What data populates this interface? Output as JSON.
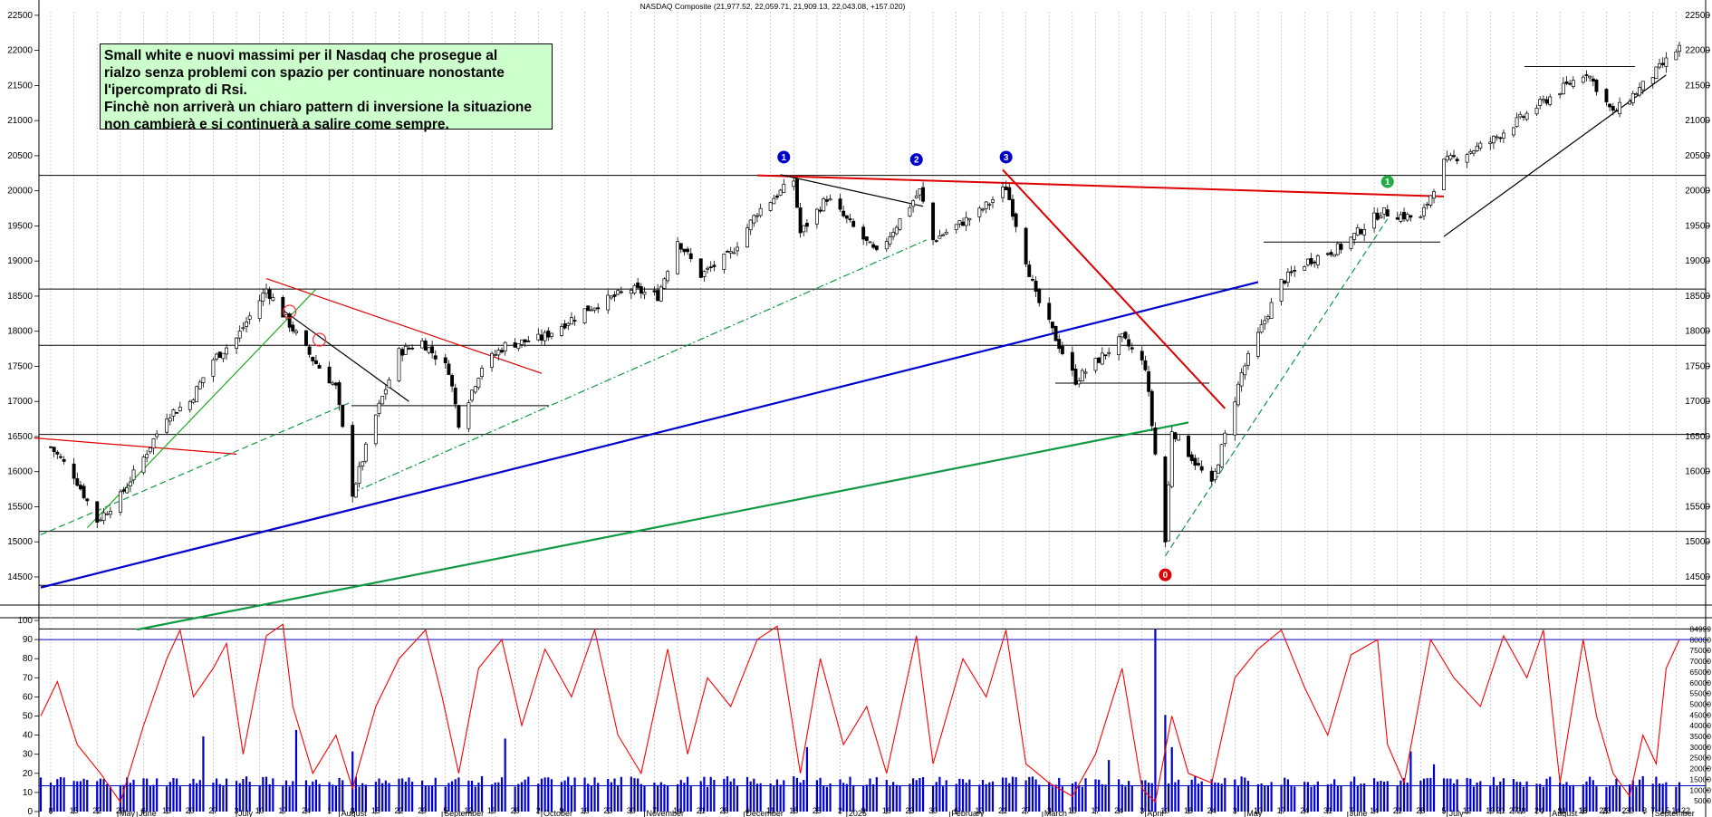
{
  "header": {
    "title": "NASDAQ Composite (21,977.52, 22,059.71, 21,909.13, 22,043.08, +157.020)"
  },
  "annotation": {
    "lines": [
      "Small white e nuovi massimi per il Nasdaq che prosegue al",
      "rialzo senza problemi con spazio per continuare nonostante",
      "l'ipercomprato di Rsi.",
      "Finchè non arriverà un chiaro pattern di inversione la situazione",
      "non cambierà e si continuerà a salire come sempre."
    ]
  },
  "markers": [
    {
      "label": "1",
      "color": "#0000cc",
      "date": "2024-12-13",
      "y": 20480
    },
    {
      "label": "2",
      "color": "#0000cc",
      "date": "2025-01-22",
      "y": 20445
    },
    {
      "label": "3",
      "color": "#0000cc",
      "date": "2025-02-18",
      "y": 20480
    },
    {
      "label": "0",
      "color": "#dd0000",
      "date": "2025-04-07",
      "y": 14530
    },
    {
      "label": "1",
      "color": "#22aa44",
      "date": "2025-06-13",
      "y": 20130
    }
  ],
  "chart_data": [
    {
      "type": "candlestick",
      "title": "NASDAQ Composite (21,977.52, 22,059.71, 21,909.13, 22,043.08, +157.020)",
      "x_axis": {
        "day_ticks": [
          "8",
          "15",
          "22",
          "29",
          "6",
          "13",
          "20",
          "27",
          "3",
          "10",
          "17",
          "24",
          "1",
          "8",
          "15",
          "22",
          "29",
          "5",
          "12",
          "19",
          "26",
          "2",
          "9",
          "16",
          "23",
          "30",
          "7",
          "14",
          "21",
          "28",
          "4",
          "11",
          "18",
          "25",
          "2",
          "9",
          "16",
          "23",
          "30",
          "6",
          "13",
          "21",
          "27",
          "3",
          "10",
          "17",
          "24",
          "3",
          "10",
          "18",
          "24",
          "3",
          "10",
          "17",
          "24",
          "31",
          "7",
          "14",
          "21",
          "28",
          "5",
          "12",
          "19",
          "27",
          "2",
          "9",
          "16",
          "23",
          "30",
          "7",
          "14",
          "21",
          "28",
          "4",
          "11",
          "18",
          "25",
          "2",
          "8",
          "15",
          "22"
        ],
        "month_labels": [
          "May",
          "June",
          "July",
          "August",
          "September",
          "October",
          "November",
          "December",
          "2025",
          "February",
          "March",
          "April",
          "May",
          "June",
          "July",
          "August",
          "September"
        ]
      },
      "y_axis": {
        "ticks": [
          "22500",
          "22000",
          "21500",
          "21000",
          "20500",
          "20000",
          "19500",
          "19000",
          "18500",
          "18000",
          "17500",
          "17000",
          "16500",
          "16000",
          "15500",
          "15000",
          "14500"
        ],
        "range": [
          14100,
          22550
        ]
      },
      "price_path": [
        {
          "date": "2024-05-06",
          "close": 16350
        },
        {
          "date": "2024-05-13",
          "close": 15950
        },
        {
          "date": "2024-05-20",
          "close": 15300
        },
        {
          "date": "2024-05-27",
          "close": 15650
        },
        {
          "date": "2024-06-03",
          "close": 16200
        },
        {
          "date": "2024-06-10",
          "close": 16800
        },
        {
          "date": "2024-06-17",
          "close": 17000
        },
        {
          "date": "2024-06-24",
          "close": 17600
        },
        {
          "date": "2024-07-01",
          "close": 17900
        },
        {
          "date": "2024-07-10",
          "close": 18600
        },
        {
          "date": "2024-07-17",
          "close": 18100
        },
        {
          "date": "2024-07-24",
          "close": 17600
        },
        {
          "date": "2024-07-31",
          "close": 17200
        },
        {
          "date": "2024-08-05",
          "close": 15700
        },
        {
          "date": "2024-08-12",
          "close": 16800
        },
        {
          "date": "2024-08-19",
          "close": 17700
        },
        {
          "date": "2024-08-26",
          "close": 17850
        },
        {
          "date": "2024-09-03",
          "close": 17450
        },
        {
          "date": "2024-09-06",
          "close": 16700
        },
        {
          "date": "2024-09-13",
          "close": 17500
        },
        {
          "date": "2024-09-20",
          "close": 17800
        },
        {
          "date": "2024-10-01",
          "close": 17900
        },
        {
          "date": "2024-10-14",
          "close": 18300
        },
        {
          "date": "2024-10-28",
          "close": 18600
        },
        {
          "date": "2024-11-05",
          "close": 18500
        },
        {
          "date": "2024-11-11",
          "close": 19300
        },
        {
          "date": "2024-11-18",
          "close": 18800
        },
        {
          "date": "2024-11-27",
          "close": 19100
        },
        {
          "date": "2024-12-05",
          "close": 19700
        },
        {
          "date": "2024-12-16",
          "close": 20150
        },
        {
          "date": "2024-12-18",
          "close": 19400
        },
        {
          "date": "2024-12-26",
          "close": 19900
        },
        {
          "date": "2025-01-10",
          "close": 19100
        },
        {
          "date": "2025-01-23",
          "close": 20000
        },
        {
          "date": "2025-01-27",
          "close": 19300
        },
        {
          "date": "2025-02-10",
          "close": 19700
        },
        {
          "date": "2025-02-18",
          "close": 20050
        },
        {
          "date": "2025-02-27",
          "close": 18500
        },
        {
          "date": "2025-03-11",
          "close": 17300
        },
        {
          "date": "2025-03-25",
          "close": 17900
        },
        {
          "date": "2025-04-01",
          "close": 17500
        },
        {
          "date": "2025-04-07",
          "close": 15000
        },
        {
          "date": "2025-04-09",
          "close": 16600
        },
        {
          "date": "2025-04-21",
          "close": 15800
        },
        {
          "date": "2025-04-30",
          "close": 17400
        },
        {
          "date": "2025-05-12",
          "close": 18700
        },
        {
          "date": "2025-05-20",
          "close": 19000
        },
        {
          "date": "2025-05-30",
          "close": 19200
        },
        {
          "date": "2025-06-11",
          "close": 19700
        },
        {
          "date": "2025-06-23",
          "close": 19600
        },
        {
          "date": "2025-06-30",
          "close": 20400
        },
        {
          "date": "2025-07-14",
          "close": 20700
        },
        {
          "date": "2025-07-28",
          "close": 21200
        },
        {
          "date": "2025-08-12",
          "close": 21700
        },
        {
          "date": "2025-08-20",
          "close": 21100
        },
        {
          "date": "2025-08-29",
          "close": 21500
        },
        {
          "date": "2025-09-09",
          "close": 22043
        }
      ],
      "horizontal_lines": [
        20220,
        18600,
        17800,
        16530,
        15150,
        14380,
        13760,
        19270,
        21770,
        16940,
        17260
      ],
      "trendlines": [
        {
          "color": "#0000cc",
          "from": {
            "date": "2024-05-03",
            "y": 14350
          },
          "to": {
            "date": "2025-05-05",
            "y": 18700
          }
        },
        {
          "color": "#119944",
          "from": {
            "date": "2024-06-01",
            "y": 13750
          },
          "to": {
            "date": "2025-04-14",
            "y": 16700
          }
        },
        {
          "color": "#dd0000",
          "from": {
            "date": "2024-12-05",
            "y": 20220
          },
          "to": {
            "date": "2025-06-30",
            "y": 19920
          }
        },
        {
          "color": "#dd0000",
          "from": {
            "date": "2025-02-17",
            "y": 20300
          },
          "to": {
            "date": "2025-04-25",
            "y": 16900
          }
        },
        {
          "color": "#dd0000",
          "from": {
            "date": "2024-07-10",
            "y": 18750
          },
          "to": {
            "date": "2024-10-01",
            "y": 17400
          }
        },
        {
          "color": "#dd0000",
          "from": {
            "date": "2024-05-01",
            "y": 16480
          },
          "to": {
            "date": "2024-07-01",
            "y": 16250
          }
        },
        {
          "color": "#000000",
          "from": {
            "date": "2024-12-12",
            "y": 20230
          },
          "to": {
            "date": "2025-01-24",
            "y": 19780
          }
        },
        {
          "color": "#000000",
          "from": {
            "date": "2024-07-15",
            "y": 18300
          },
          "to": {
            "date": "2024-08-22",
            "y": 17000
          }
        },
        {
          "color": "#000000",
          "from": {
            "date": "2025-06-30",
            "y": 19350
          },
          "to": {
            "date": "2025-09-05",
            "y": 21650
          }
        },
        {
          "color": "#22aa22",
          "from": {
            "date": "2024-05-17",
            "y": 15200
          },
          "to": {
            "date": "2024-07-25",
            "y": 18600
          }
        },
        {
          "color": "#119944",
          "dash": "dashed",
          "from": {
            "date": "2024-05-03",
            "y": 15100
          },
          "to": {
            "date": "2024-08-05",
            "y": 17000
          }
        },
        {
          "color": "#119944",
          "dash": "dashdot",
          "from": {
            "date": "2024-08-05",
            "y": 15700
          },
          "to": {
            "date": "2025-01-25",
            "y": 19300
          }
        },
        {
          "color": "#119944",
          "dash": "dashed",
          "from": {
            "date": "2025-04-07",
            "y": 14800
          },
          "to": {
            "date": "2025-06-13",
            "y": 19600
          }
        }
      ]
    },
    {
      "type": "line",
      "series_color": "#ff0000",
      "y_axis_left": {
        "ticks": [
          "100",
          "90",
          "80",
          "70",
          "60",
          "50",
          "40",
          "30",
          "20",
          "10",
          "0"
        ],
        "range": [
          0,
          100
        ]
      },
      "reference_line": 90,
      "rsi_path": [
        {
          "date": "2024-05-03",
          "v": 50
        },
        {
          "date": "2024-05-08",
          "v": 68
        },
        {
          "date": "2024-05-14",
          "v": 35
        },
        {
          "date": "2024-05-21",
          "v": 20
        },
        {
          "date": "2024-05-27",
          "v": 5
        },
        {
          "date": "2024-06-03",
          "v": 45
        },
        {
          "date": "2024-06-10",
          "v": 80
        },
        {
          "date": "2024-06-14",
          "v": 95
        },
        {
          "date": "2024-06-18",
          "v": 60
        },
        {
          "date": "2024-06-24",
          "v": 75
        },
        {
          "date": "2024-06-28",
          "v": 88
        },
        {
          "date": "2024-07-03",
          "v": 30
        },
        {
          "date": "2024-07-10",
          "v": 92
        },
        {
          "date": "2024-07-15",
          "v": 98
        },
        {
          "date": "2024-07-18",
          "v": 55
        },
        {
          "date": "2024-07-24",
          "v": 20
        },
        {
          "date": "2024-07-31",
          "v": 40
        },
        {
          "date": "2024-08-05",
          "v": 12
        },
        {
          "date": "2024-08-12",
          "v": 55
        },
        {
          "date": "2024-08-19",
          "v": 80
        },
        {
          "date": "2024-08-27",
          "v": 95
        },
        {
          "date": "2024-09-01",
          "v": 60
        },
        {
          "date": "2024-09-06",
          "v": 20
        },
        {
          "date": "2024-09-12",
          "v": 75
        },
        {
          "date": "2024-09-19",
          "v": 90
        },
        {
          "date": "2024-09-25",
          "v": 45
        },
        {
          "date": "2024-10-02",
          "v": 85
        },
        {
          "date": "2024-10-10",
          "v": 60
        },
        {
          "date": "2024-10-17",
          "v": 95
        },
        {
          "date": "2024-10-24",
          "v": 40
        },
        {
          "date": "2024-10-31",
          "v": 20
        },
        {
          "date": "2024-11-08",
          "v": 85
        },
        {
          "date": "2024-11-14",
          "v": 30
        },
        {
          "date": "2024-11-20",
          "v": 70
        },
        {
          "date": "2024-11-27",
          "v": 55
        },
        {
          "date": "2024-12-05",
          "v": 90
        },
        {
          "date": "2024-12-11",
          "v": 97
        },
        {
          "date": "2024-12-18",
          "v": 20
        },
        {
          "date": "2024-12-24",
          "v": 80
        },
        {
          "date": "2024-12-31",
          "v": 35
        },
        {
          "date": "2025-01-07",
          "v": 55
        },
        {
          "date": "2025-01-13",
          "v": 20
        },
        {
          "date": "2025-01-22",
          "v": 92
        },
        {
          "date": "2025-01-27",
          "v": 25
        },
        {
          "date": "2025-02-05",
          "v": 80
        },
        {
          "date": "2025-02-12",
          "v": 60
        },
        {
          "date": "2025-02-18",
          "v": 95
        },
        {
          "date": "2025-02-24",
          "v": 25
        },
        {
          "date": "2025-03-03",
          "v": 15
        },
        {
          "date": "2025-03-10",
          "v": 8
        },
        {
          "date": "2025-03-17",
          "v": 30
        },
        {
          "date": "2025-03-25",
          "v": 75
        },
        {
          "date": "2025-03-31",
          "v": 12
        },
        {
          "date": "2025-04-04",
          "v": 5
        },
        {
          "date": "2025-04-09",
          "v": 50
        },
        {
          "date": "2025-04-14",
          "v": 20
        },
        {
          "date": "2025-04-21",
          "v": 15
        },
        {
          "date": "2025-04-28",
          "v": 70
        },
        {
          "date": "2025-05-05",
          "v": 85
        },
        {
          "date": "2025-05-12",
          "v": 95
        },
        {
          "date": "2025-05-19",
          "v": 65
        },
        {
          "date": "2025-05-26",
          "v": 40
        },
        {
          "date": "2025-06-02",
          "v": 82
        },
        {
          "date": "2025-06-10",
          "v": 90
        },
        {
          "date": "2025-06-13",
          "v": 35
        },
        {
          "date": "2025-06-18",
          "v": 15
        },
        {
          "date": "2025-06-26",
          "v": 90
        },
        {
          "date": "2025-07-03",
          "v": 70
        },
        {
          "date": "2025-07-11",
          "v": 55
        },
        {
          "date": "2025-07-18",
          "v": 92
        },
        {
          "date": "2025-07-25",
          "v": 70
        },
        {
          "date": "2025-07-30",
          "v": 95
        },
        {
          "date": "2025-08-04",
          "v": 15
        },
        {
          "date": "2025-08-11",
          "v": 90
        },
        {
          "date": "2025-08-15",
          "v": 50
        },
        {
          "date": "2025-08-20",
          "v": 20
        },
        {
          "date": "2025-08-25",
          "v": 8
        },
        {
          "date": "2025-08-29",
          "v": 40
        },
        {
          "date": "2025-09-02",
          "v": 25
        },
        {
          "date": "2025-09-05",
          "v": 75
        },
        {
          "date": "2025-09-09",
          "v": 90
        }
      ]
    },
    {
      "type": "bar",
      "series_color": "#0000cc",
      "y_axis_right": {
        "ticks": [
          "84999",
          "80000",
          "75000",
          "70000",
          "65000",
          "60000",
          "55000",
          "50000",
          "45000",
          "40000",
          "35000",
          "30000",
          "25000",
          "20000",
          "15000",
          "10000",
          "5000"
        ],
        "range": [
          0,
          89000
        ]
      },
      "reference_line": 12000,
      "base_volume": 14000,
      "volume_spikes": [
        {
          "date": "2024-06-21",
          "v": 35000
        },
        {
          "date": "2024-07-19",
          "v": 38000
        },
        {
          "date": "2024-08-05",
          "v": 28000
        },
        {
          "date": "2024-09-20",
          "v": 34000
        },
        {
          "date": "2024-12-20",
          "v": 30000
        },
        {
          "date": "2025-03-21",
          "v": 24000
        },
        {
          "date": "2025-04-04",
          "v": 85000
        },
        {
          "date": "2025-04-07",
          "v": 45000
        },
        {
          "date": "2025-04-09",
          "v": 30000
        },
        {
          "date": "2025-06-20",
          "v": 28000
        },
        {
          "date": "2025-06-27",
          "v": 22000
        }
      ]
    }
  ]
}
